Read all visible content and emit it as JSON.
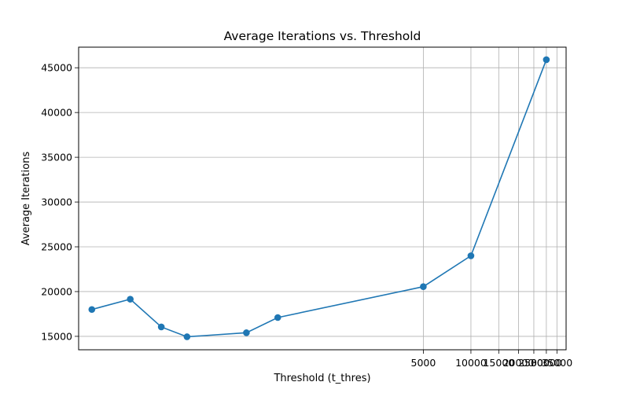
{
  "chart_data": {
    "type": "line",
    "title": "Average Iterations vs. Threshold",
    "xlabel": "Threshold (t_thres)",
    "ylabel": "Average Iterations",
    "x_scale": "log",
    "xlim": [
      33,
      40000
    ],
    "ylim": [
      13500,
      47300
    ],
    "grid": true,
    "color": "#1f77b4",
    "x_ticks": [
      5000,
      10000,
      15000,
      20000,
      25000,
      30000,
      35000
    ],
    "y_ticks": [
      15000,
      20000,
      25000,
      30000,
      35000,
      40000,
      45000
    ],
    "series": [
      {
        "x": [
          40,
          70,
          110,
          160,
          380,
          600,
          5000,
          10000,
          30000
        ],
        "y": [
          18000,
          19150,
          16050,
          14950,
          15400,
          17100,
          20550,
          24000,
          45900
        ]
      }
    ]
  }
}
